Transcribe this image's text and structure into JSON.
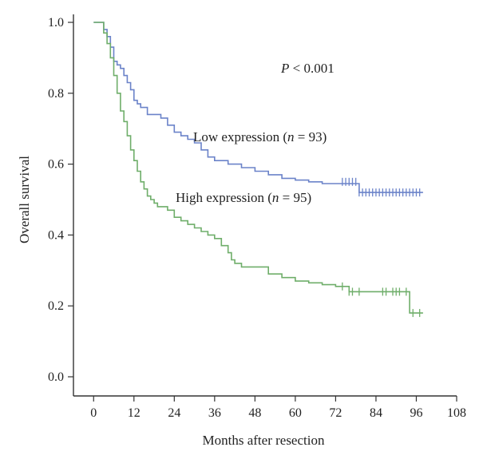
{
  "chart_data": {
    "type": "line",
    "step": true,
    "xlabel": "Months after resection",
    "ylabel": "Overall survival",
    "xlim": [
      -6,
      108
    ],
    "ylim": [
      0,
      1
    ],
    "xticks": [
      "0",
      "12",
      "24",
      "36",
      "48",
      "60",
      "72",
      "84",
      "96",
      "108"
    ],
    "yticks": [
      "0.0",
      "0.2",
      "0.4",
      "0.6",
      "0.8",
      "1.0"
    ],
    "grid": false,
    "annotations": {
      "p_prefix": "P",
      "p_rest": " < 0.001"
    },
    "series": [
      {
        "label_prefix": "Low expression (",
        "label_n": "n",
        "label_suffix": " = 93)",
        "color": "#6b83c9",
        "x": [
          0,
          3,
          4,
          5,
          6,
          7,
          8,
          9,
          10,
          11,
          12,
          13,
          14,
          16,
          20,
          22,
          24,
          26,
          28,
          30,
          32,
          34,
          36,
          40,
          44,
          48,
          52,
          56,
          60,
          64,
          68,
          72,
          76,
          79,
          84,
          90,
          96,
          98
        ],
        "y": [
          1.0,
          0.98,
          0.96,
          0.93,
          0.89,
          0.88,
          0.87,
          0.85,
          0.83,
          0.81,
          0.78,
          0.77,
          0.76,
          0.74,
          0.73,
          0.71,
          0.69,
          0.68,
          0.67,
          0.66,
          0.64,
          0.62,
          0.61,
          0.6,
          0.59,
          0.58,
          0.57,
          0.56,
          0.555,
          0.55,
          0.545,
          0.545,
          0.545,
          0.52,
          0.52,
          0.52,
          0.52,
          0.52
        ],
        "censored_x": [
          74,
          75,
          76,
          77,
          78,
          79,
          80,
          81,
          82,
          83,
          84,
          85,
          86,
          87,
          88,
          89,
          90,
          91,
          92,
          93,
          94,
          95,
          96,
          97
        ],
        "censored_y": [
          0.55,
          0.55,
          0.55,
          0.55,
          0.55,
          0.52,
          0.52,
          0.52,
          0.52,
          0.52,
          0.52,
          0.52,
          0.52,
          0.52,
          0.52,
          0.52,
          0.52,
          0.52,
          0.52,
          0.52,
          0.52,
          0.52,
          0.52,
          0.52
        ]
      },
      {
        "label_prefix": "High expression (",
        "label_n": "n",
        "label_suffix": " = 95)",
        "color": "#6fae6a",
        "x": [
          0,
          3,
          4,
          5,
          6,
          7,
          8,
          9,
          10,
          11,
          12,
          13,
          14,
          15,
          16,
          17,
          18,
          19,
          20,
          22,
          24,
          26,
          28,
          30,
          32,
          34,
          36,
          38,
          40,
          41,
          42,
          44,
          48,
          52,
          56,
          60,
          64,
          68,
          72,
          76,
          84,
          90,
          94,
          98
        ],
        "y": [
          1.0,
          0.97,
          0.94,
          0.9,
          0.85,
          0.8,
          0.75,
          0.72,
          0.68,
          0.64,
          0.61,
          0.58,
          0.55,
          0.53,
          0.51,
          0.5,
          0.49,
          0.48,
          0.48,
          0.47,
          0.45,
          0.44,
          0.43,
          0.42,
          0.41,
          0.4,
          0.39,
          0.37,
          0.35,
          0.33,
          0.32,
          0.31,
          0.31,
          0.29,
          0.28,
          0.27,
          0.265,
          0.26,
          0.255,
          0.24,
          0.24,
          0.24,
          0.18,
          0.18
        ],
        "censored_x": [
          74,
          76,
          77,
          79,
          86,
          87,
          89,
          90,
          91,
          93,
          95,
          97
        ],
        "censored_y": [
          0.255,
          0.24,
          0.24,
          0.24,
          0.24,
          0.24,
          0.24,
          0.24,
          0.24,
          0.24,
          0.18,
          0.18
        ]
      }
    ]
  }
}
